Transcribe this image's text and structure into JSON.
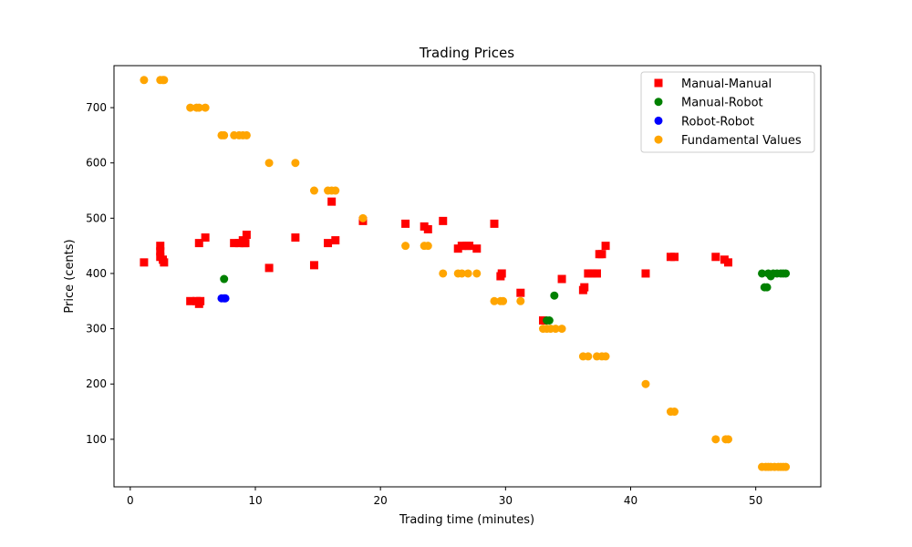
{
  "chart_data": {
    "type": "scatter",
    "title": "Trading Prices",
    "xlabel": "Trading time (minutes)",
    "ylabel": "Price (cents)",
    "xlim": [
      -1.3,
      55.2
    ],
    "ylim": [
      14,
      776
    ],
    "xticks": [
      0,
      10,
      20,
      30,
      40,
      50
    ],
    "yticks": [
      100,
      200,
      300,
      400,
      500,
      600,
      700
    ],
    "legend_position": "top-right",
    "grid": false,
    "series": [
      {
        "name": "Manual-Manual",
        "marker": "square",
        "color": "#ff0000",
        "points": [
          [
            1.1,
            420
          ],
          [
            2.4,
            450
          ],
          [
            2.4,
            440
          ],
          [
            2.4,
            430
          ],
          [
            2.6,
            425
          ],
          [
            2.7,
            420
          ],
          [
            4.8,
            350
          ],
          [
            5.3,
            350
          ],
          [
            5.5,
            455
          ],
          [
            5.5,
            345
          ],
          [
            5.6,
            350
          ],
          [
            6.0,
            465
          ],
          [
            8.3,
            455
          ],
          [
            8.7,
            455
          ],
          [
            9.0,
            460
          ],
          [
            9.1,
            455
          ],
          [
            9.2,
            455
          ],
          [
            9.3,
            470
          ],
          [
            11.1,
            410
          ],
          [
            13.2,
            465
          ],
          [
            14.7,
            415
          ],
          [
            15.8,
            455
          ],
          [
            16.1,
            530
          ],
          [
            16.4,
            460
          ],
          [
            18.6,
            495
          ],
          [
            22.0,
            490
          ],
          [
            23.5,
            485
          ],
          [
            23.8,
            480
          ],
          [
            25.0,
            495
          ],
          [
            26.2,
            445
          ],
          [
            26.5,
            450
          ],
          [
            26.9,
            450
          ],
          [
            27.1,
            450
          ],
          [
            27.7,
            445
          ],
          [
            29.1,
            490
          ],
          [
            29.6,
            395
          ],
          [
            29.7,
            400
          ],
          [
            31.2,
            365
          ],
          [
            33.0,
            315
          ],
          [
            34.5,
            390
          ],
          [
            36.2,
            370
          ],
          [
            36.3,
            375
          ],
          [
            36.6,
            400
          ],
          [
            36.9,
            400
          ],
          [
            37.3,
            400
          ],
          [
            37.5,
            435
          ],
          [
            37.7,
            435
          ],
          [
            38.0,
            450
          ],
          [
            41.2,
            400
          ],
          [
            43.2,
            430
          ],
          [
            43.5,
            430
          ],
          [
            46.8,
            430
          ],
          [
            47.5,
            425
          ],
          [
            47.8,
            420
          ]
        ]
      },
      {
        "name": "Manual-Robot",
        "marker": "circle",
        "color": "#008000",
        "points": [
          [
            7.5,
            390
          ],
          [
            33.3,
            315
          ],
          [
            33.5,
            315
          ],
          [
            33.9,
            360
          ],
          [
            50.5,
            400
          ],
          [
            50.7,
            375
          ],
          [
            50.9,
            375
          ],
          [
            51.0,
            400
          ],
          [
            51.2,
            395
          ],
          [
            51.4,
            400
          ],
          [
            51.7,
            400
          ],
          [
            52.0,
            400
          ],
          [
            52.2,
            400
          ],
          [
            52.4,
            400
          ]
        ]
      },
      {
        "name": "Robot-Robot",
        "marker": "circle",
        "color": "#0000ff",
        "points": [
          [
            7.3,
            355
          ],
          [
            7.5,
            355
          ],
          [
            7.6,
            355
          ]
        ]
      },
      {
        "name": "Fundamental Values",
        "marker": "circle",
        "color": "#ffa500",
        "points": [
          [
            1.1,
            750
          ],
          [
            2.4,
            750
          ],
          [
            2.6,
            750
          ],
          [
            2.7,
            750
          ],
          [
            4.8,
            700
          ],
          [
            5.3,
            700
          ],
          [
            5.5,
            700
          ],
          [
            6.0,
            700
          ],
          [
            7.3,
            650
          ],
          [
            7.5,
            650
          ],
          [
            8.3,
            650
          ],
          [
            8.7,
            650
          ],
          [
            9.0,
            650
          ],
          [
            9.3,
            650
          ],
          [
            11.1,
            600
          ],
          [
            13.2,
            600
          ],
          [
            14.7,
            550
          ],
          [
            15.8,
            550
          ],
          [
            16.1,
            550
          ],
          [
            16.4,
            550
          ],
          [
            18.6,
            500
          ],
          [
            22.0,
            450
          ],
          [
            23.5,
            450
          ],
          [
            23.8,
            450
          ],
          [
            25.0,
            400
          ],
          [
            26.2,
            400
          ],
          [
            26.5,
            400
          ],
          [
            27.0,
            400
          ],
          [
            27.7,
            400
          ],
          [
            29.1,
            350
          ],
          [
            29.6,
            350
          ],
          [
            29.8,
            350
          ],
          [
            31.2,
            350
          ],
          [
            33.0,
            300
          ],
          [
            33.3,
            300
          ],
          [
            33.6,
            300
          ],
          [
            34.0,
            300
          ],
          [
            34.5,
            300
          ],
          [
            36.2,
            250
          ],
          [
            36.6,
            250
          ],
          [
            37.3,
            250
          ],
          [
            37.7,
            250
          ],
          [
            38.0,
            250
          ],
          [
            41.2,
            200
          ],
          [
            43.2,
            150
          ],
          [
            43.5,
            150
          ],
          [
            46.8,
            100
          ],
          [
            47.6,
            100
          ],
          [
            47.8,
            100
          ],
          [
            50.5,
            50
          ],
          [
            50.8,
            50
          ],
          [
            51.0,
            50
          ],
          [
            51.2,
            50
          ],
          [
            51.5,
            50
          ],
          [
            51.8,
            50
          ],
          [
            52.0,
            50
          ],
          [
            52.2,
            50
          ],
          [
            52.4,
            50
          ]
        ]
      }
    ]
  }
}
